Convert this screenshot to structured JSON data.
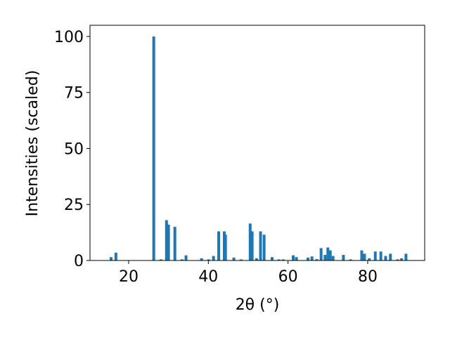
{
  "chart_data": {
    "type": "bar",
    "xlabel": "2θ (°)",
    "ylabel": "Intensities (scaled)",
    "color": "#1f77b4",
    "x": [
      15.6,
      16.8,
      26.3,
      28.1,
      29.5,
      30.0,
      31.6,
      33.4,
      34.4,
      38.3,
      40.1,
      41.3,
      42.6,
      44.0,
      44.3,
      46.4,
      48.2,
      50.5,
      51.0,
      52.1,
      53.1,
      54.0,
      56.0,
      57.7,
      58.8,
      61.3,
      62.1,
      65.0,
      66.0,
      67.2,
      68.3,
      69.3,
      70.0,
      70.6,
      71.3,
      73.9,
      75.7,
      78.5,
      79.2,
      80.4,
      81.9,
      83.3,
      84.5,
      85.7,
      87.5,
      88.5,
      89.6
    ],
    "values": [
      1.5,
      3.5,
      100,
      0.5,
      18,
      16,
      15,
      0.5,
      2.3,
      1,
      0.5,
      2,
      13,
      13,
      11.5,
      1.3,
      0.5,
      16.5,
      13,
      1,
      13,
      11.5,
      1.5,
      0.5,
      0.5,
      2.3,
      1.5,
      1.3,
      1.8,
      0.6,
      5.5,
      2.5,
      5.8,
      4.5,
      2,
      2.5,
      0.5,
      4.5,
      3,
      1,
      4,
      4,
      2,
      3,
      0.5,
      1,
      3
    ],
    "xlim": [
      10.3,
      94.3
    ],
    "ylim": [
      0,
      105
    ],
    "xticks": [
      20,
      40,
      60,
      80
    ],
    "yticks": [
      0,
      25,
      50,
      75,
      100
    ]
  }
}
